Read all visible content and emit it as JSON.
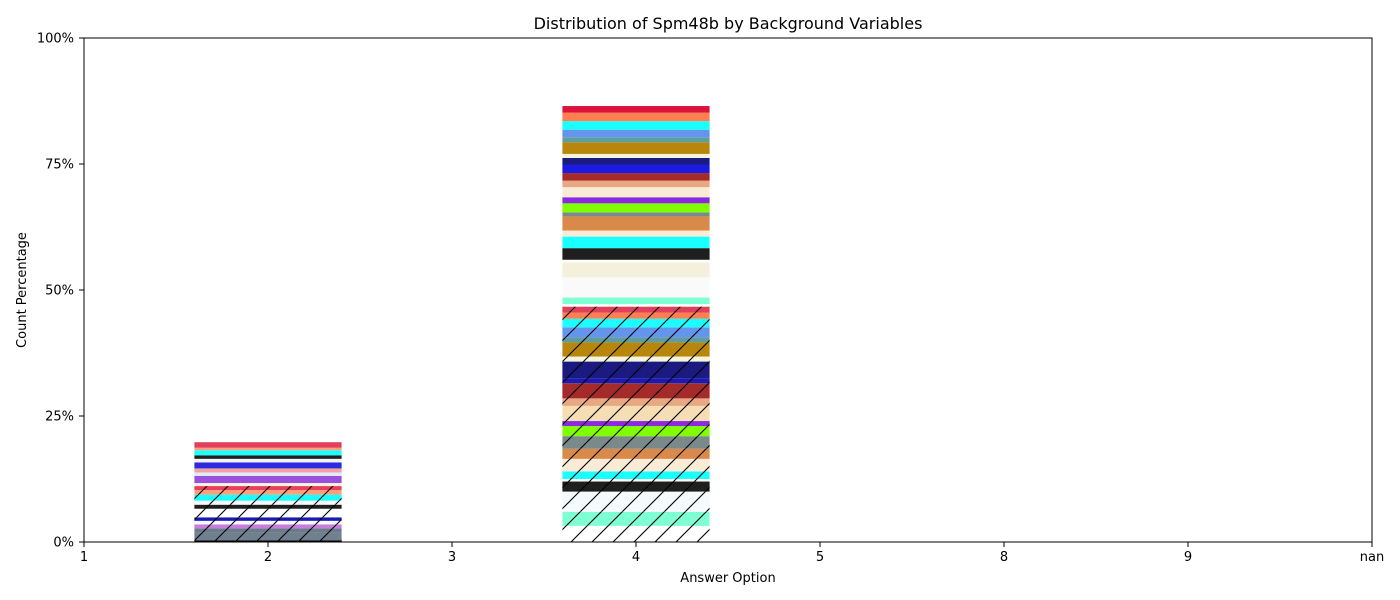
{
  "chart_data": {
    "type": "bar",
    "stacked": true,
    "title": "Distribution of Spm48b by Background Variables",
    "xlabel": "Answer Option",
    "ylabel": "Count Percentage",
    "categories": [
      "1",
      "2",
      "3",
      "4",
      "5",
      "8",
      "9",
      "nan"
    ],
    "ylim": [
      0,
      100
    ],
    "yticks": [
      0,
      25,
      50,
      75,
      100
    ],
    "ytick_labels": [
      "0%",
      "25%",
      "50%",
      "75%",
      "100%"
    ],
    "grid": false,
    "legend": "none",
    "stacks": [
      {
        "category": "2",
        "segments": [
          {
            "value": 0.3,
            "color": "#000000",
            "hatch": false
          },
          {
            "value": 1.6,
            "color": "#708090",
            "hatch": true
          },
          {
            "value": 0.8,
            "color": "#6b7b8c",
            "hatch": true
          },
          {
            "value": 0.8,
            "color": "#c77ddb",
            "hatch": true
          },
          {
            "value": 0.7,
            "color": "#fafafa",
            "hatch": true
          },
          {
            "value": 0.7,
            "color": "#1a1ab5",
            "hatch": true
          },
          {
            "value": 1.7,
            "color": "#ffffff",
            "hatch": true
          },
          {
            "value": 0.8,
            "color": "#1f1f1f",
            "hatch": true
          },
          {
            "value": 0.8,
            "color": "#fafafa",
            "hatch": true
          },
          {
            "value": 1.2,
            "color": "#1affff",
            "hatch": true
          },
          {
            "value": 0.9,
            "color": "#ffa07a",
            "hatch": true
          },
          {
            "value": 0.8,
            "color": "#e8405a",
            "hatch": true
          },
          {
            "value": 0.6,
            "color": "#f8f2df",
            "hatch": false
          },
          {
            "value": 1.4,
            "color": "#9a4fdd",
            "hatch": false
          },
          {
            "value": 0.7,
            "color": "#ddeaf8",
            "hatch": false
          },
          {
            "value": 0.8,
            "color": "#f4a0a0",
            "hatch": false
          },
          {
            "value": 1.2,
            "color": "#2a2ae0",
            "hatch": false
          },
          {
            "value": 0.7,
            "color": "#f3f3f3",
            "hatch": false
          },
          {
            "value": 0.7,
            "color": "#1f1f1f",
            "hatch": false
          },
          {
            "value": 1.0,
            "color": "#1affff",
            "hatch": false
          },
          {
            "value": 0.5,
            "color": "#ffa07a",
            "hatch": false
          },
          {
            "value": 1.1,
            "color": "#e0405a",
            "hatch": false
          }
        ]
      },
      {
        "category": "4",
        "segments": [
          {
            "value": 3.2,
            "color": "#ffffff",
            "hatch": true
          },
          {
            "value": 2.8,
            "color": "#7fffd4",
            "hatch": true
          },
          {
            "value": 4.0,
            "color": "#f5fafc",
            "hatch": true
          },
          {
            "value": 2.0,
            "color": "#1f1f1f",
            "hatch": true
          },
          {
            "value": 0.5,
            "color": "#ffffff",
            "hatch": true
          },
          {
            "value": 1.5,
            "color": "#1affff",
            "hatch": true
          },
          {
            "value": 2.5,
            "color": "#faebd7",
            "hatch": true
          },
          {
            "value": 2.0,
            "color": "#d9894a",
            "hatch": true
          },
          {
            "value": 2.5,
            "color": "#7a8a8a",
            "hatch": true
          },
          {
            "value": 2.0,
            "color": "#7fff00",
            "hatch": true
          },
          {
            "value": 1.0,
            "color": "#8a2be2",
            "hatch": true
          },
          {
            "value": 3.0,
            "color": "#f5deb3",
            "hatch": true
          },
          {
            "value": 1.5,
            "color": "#e8a882",
            "hatch": true
          },
          {
            "value": 3.0,
            "color": "#a52a2a",
            "hatch": true
          },
          {
            "value": 1.0,
            "color": "#1a1ab5",
            "hatch": true
          },
          {
            "value": 3.3,
            "color": "#1a1a80",
            "hatch": true
          },
          {
            "value": 1.0,
            "color": "#f5f5dc",
            "hatch": true
          },
          {
            "value": 2.8,
            "color": "#b8860b",
            "hatch": true
          },
          {
            "value": 1.0,
            "color": "#5f9ea0",
            "hatch": true
          },
          {
            "value": 2.0,
            "color": "#6495ed",
            "hatch": true
          },
          {
            "value": 1.7,
            "color": "#1affff",
            "hatch": true
          },
          {
            "value": 1.2,
            "color": "#ff7f50",
            "hatch": true
          },
          {
            "value": 1.2,
            "color": "#e0405a",
            "hatch": true
          },
          {
            "value": 0.5,
            "color": "#ffffff",
            "hatch": false
          },
          {
            "value": 1.3,
            "color": "#7fffd4",
            "hatch": false
          },
          {
            "value": 4.0,
            "color": "#fafafa",
            "hatch": false
          },
          {
            "value": 3.0,
            "color": "#f5f0dc",
            "hatch": false
          },
          {
            "value": 0.5,
            "color": "#ffffff",
            "hatch": false
          },
          {
            "value": 2.3,
            "color": "#1f1f1f",
            "hatch": false
          },
          {
            "value": 2.3,
            "color": "#1affff",
            "hatch": false
          },
          {
            "value": 1.2,
            "color": "#faebd7",
            "hatch": false
          },
          {
            "value": 2.8,
            "color": "#d9894a",
            "hatch": false
          },
          {
            "value": 0.8,
            "color": "#7a8a8a",
            "hatch": false
          },
          {
            "value": 1.8,
            "color": "#7fff00",
            "hatch": false
          },
          {
            "value": 1.2,
            "color": "#8a2be2",
            "hatch": false
          },
          {
            "value": 2.0,
            "color": "#faebd7",
            "hatch": false
          },
          {
            "value": 1.3,
            "color": "#e8a882",
            "hatch": false
          },
          {
            "value": 1.5,
            "color": "#a52a2a",
            "hatch": false
          },
          {
            "value": 1.7,
            "color": "#1a1ae0",
            "hatch": false
          },
          {
            "value": 1.3,
            "color": "#1a1a80",
            "hatch": false
          },
          {
            "value": 0.8,
            "color": "#f5f5dc",
            "hatch": false
          },
          {
            "value": 2.3,
            "color": "#b8860b",
            "hatch": false
          },
          {
            "value": 1.0,
            "color": "#5f9ea0",
            "hatch": false
          },
          {
            "value": 1.5,
            "color": "#6495ed",
            "hatch": false
          },
          {
            "value": 1.7,
            "color": "#1affff",
            "hatch": false
          },
          {
            "value": 1.7,
            "color": "#ff7f50",
            "hatch": false
          },
          {
            "value": 1.3,
            "color": "#dc143c",
            "hatch": false
          }
        ]
      }
    ]
  }
}
